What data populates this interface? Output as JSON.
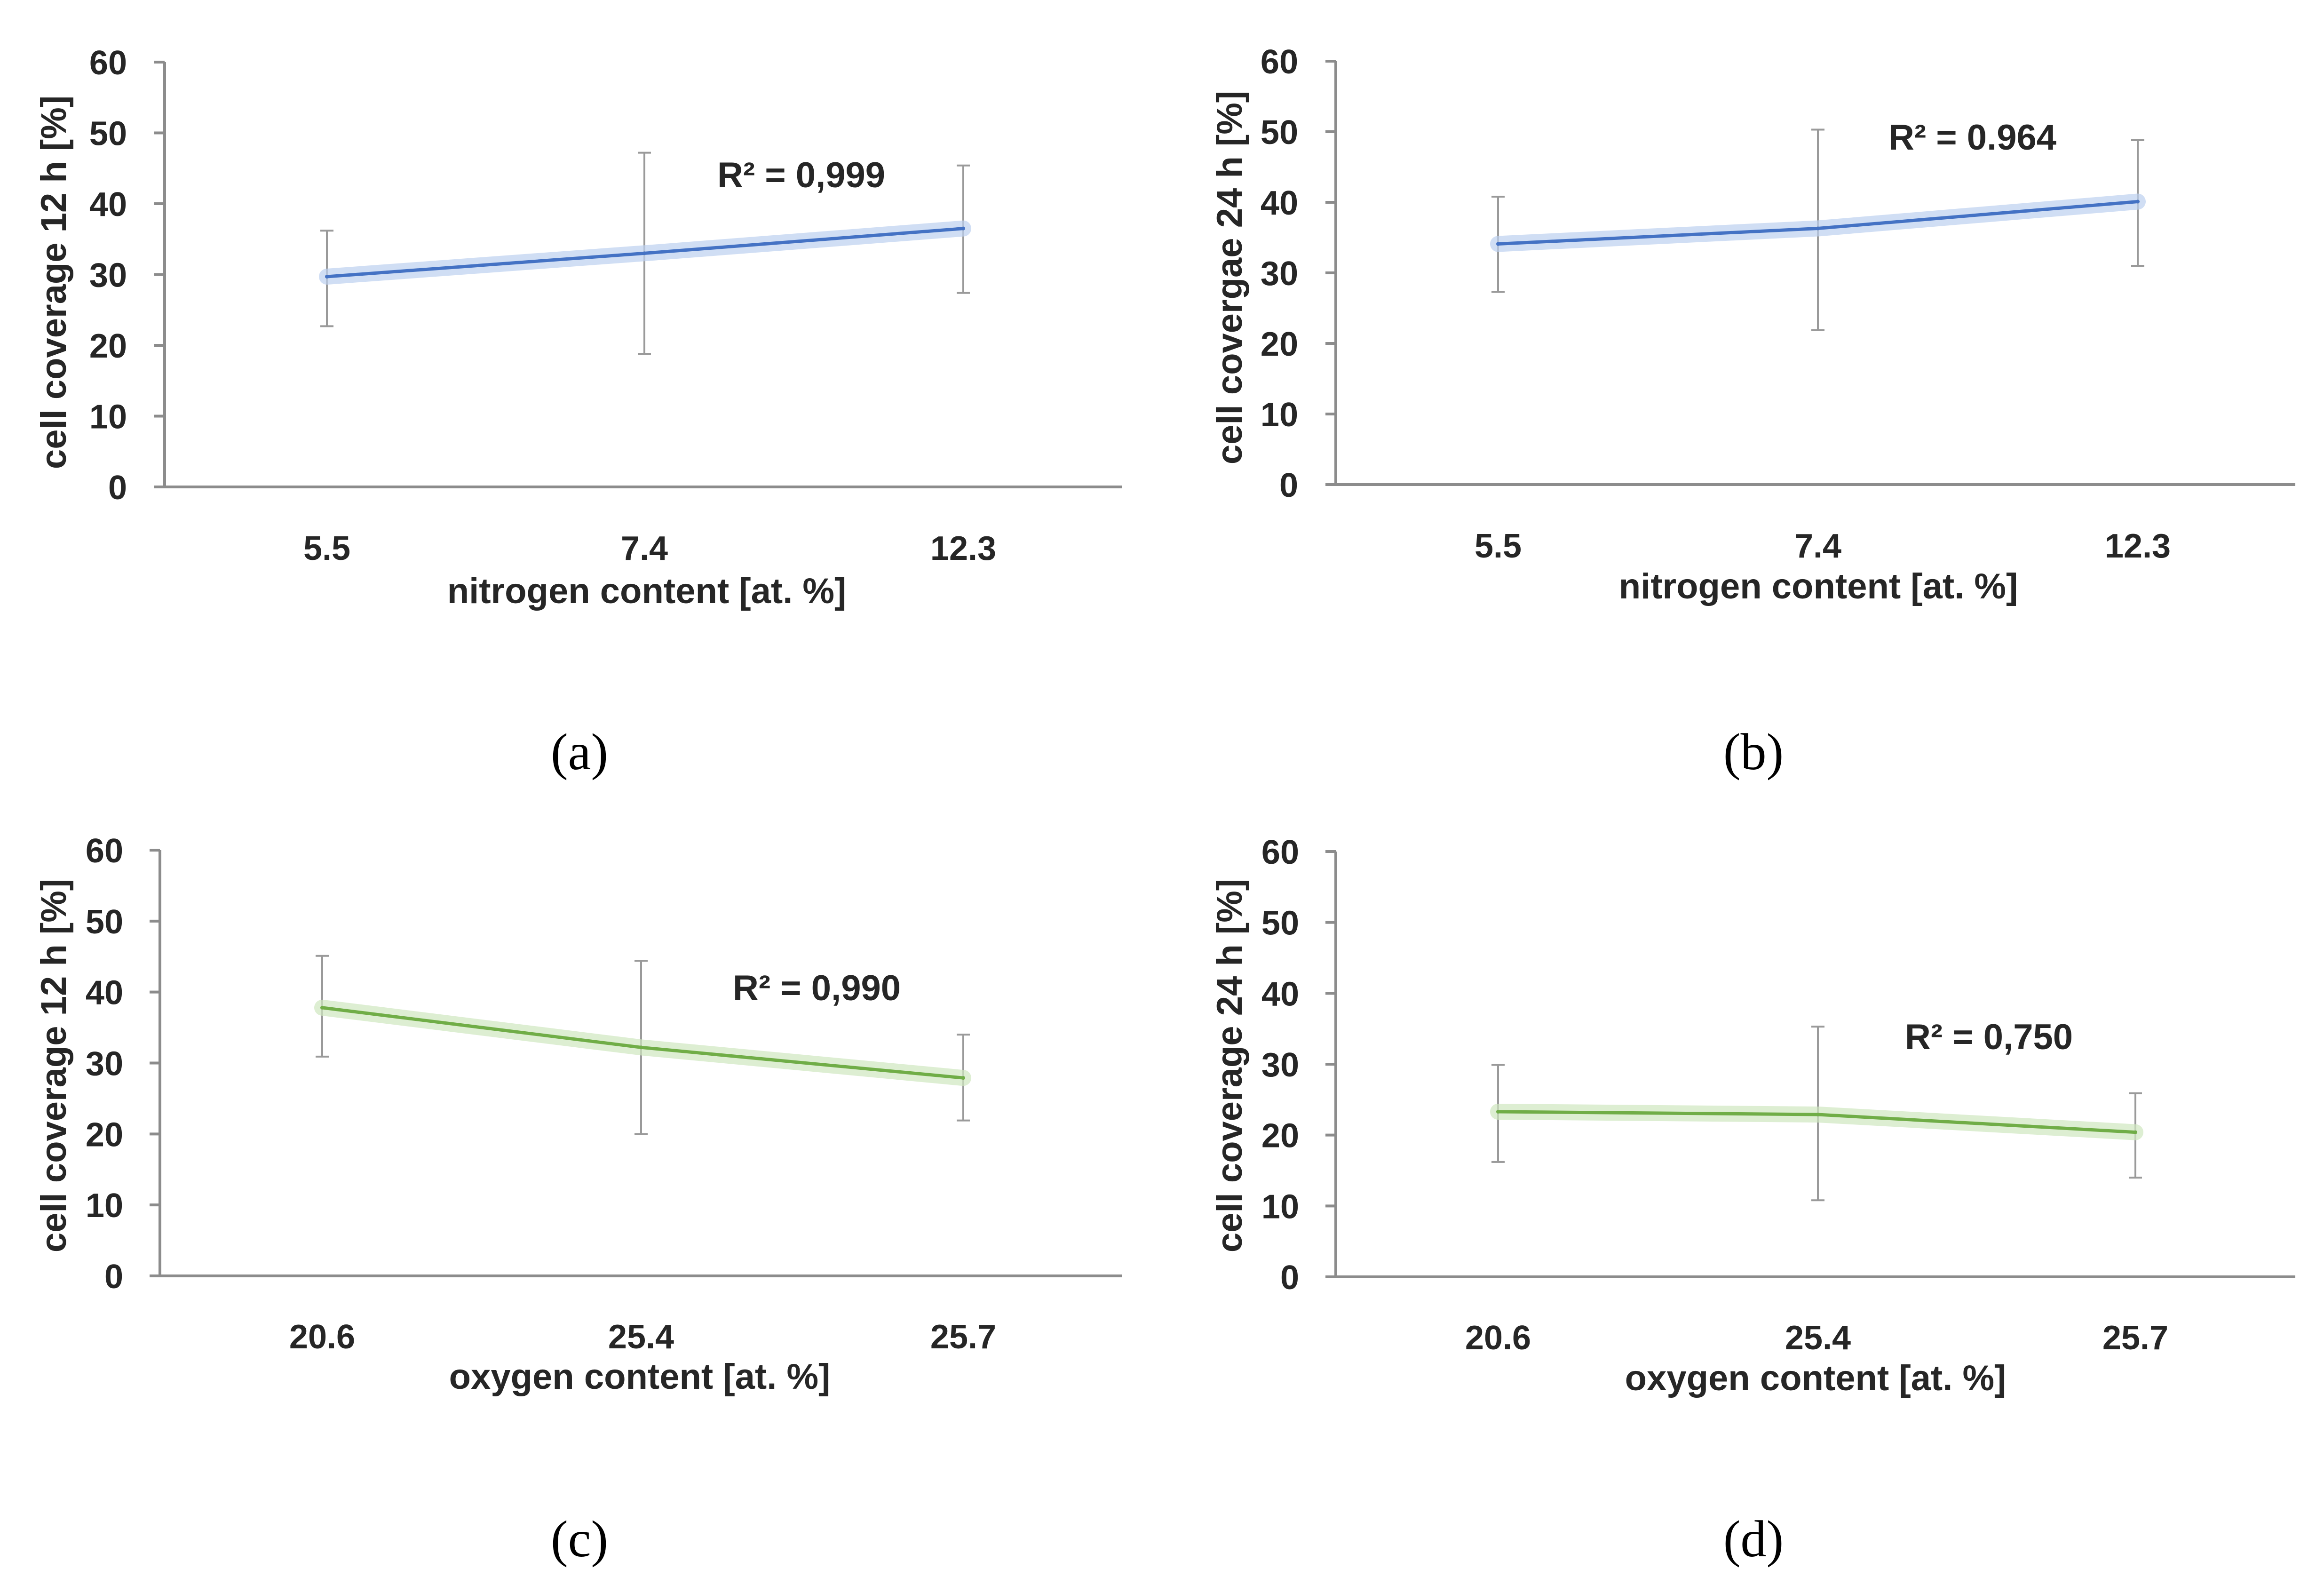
{
  "chart_data": [
    {
      "panel": "(a)",
      "type": "line",
      "title": "",
      "xlabel": "nitrogen content [at. %]",
      "ylabel": "cell coverage 12 h [%]",
      "categories": [
        "5.5",
        "7.4",
        "12.3"
      ],
      "ylim": [
        0,
        60
      ],
      "yticks": [
        0,
        10,
        20,
        30,
        40,
        50,
        60
      ],
      "grid": false,
      "series": [
        {
          "name": "cell coverage 12 h",
          "values": [
            29.7,
            33.0,
            36.5
          ],
          "err_low": [
            22.7,
            18.8,
            27.4
          ],
          "err_high": [
            36.2,
            47.2,
            45.4
          ],
          "color": "#4472c4",
          "glow": "#bcd0f0"
        }
      ],
      "annotation": "R² = 0,999"
    },
    {
      "panel": "(b)",
      "type": "line",
      "title": "",
      "xlabel": "nitrogen content [at. %]",
      "ylabel": "cell covergae 24 h [%]",
      "categories": [
        "5.5",
        "7.4",
        "12.3"
      ],
      "ylim": [
        0,
        60
      ],
      "yticks": [
        0,
        10,
        20,
        30,
        40,
        50,
        60
      ],
      "grid": false,
      "series": [
        {
          "name": "cell coverage 24 h",
          "values": [
            34.1,
            36.3,
            40.1
          ],
          "err_low": [
            27.3,
            21.9,
            31.0
          ],
          "err_high": [
            40.8,
            50.3,
            48.8
          ],
          "color": "#4472c4",
          "glow": "#bcd0f0"
        }
      ],
      "annotation": "R² = 0.964"
    },
    {
      "panel": "(c)",
      "type": "line",
      "title": "",
      "xlabel": "oxygen content [at. %]",
      "ylabel": "cell coverage 12 h [%]",
      "categories": [
        "20.6",
        "25.4",
        "25.7"
      ],
      "ylim": [
        0,
        60
      ],
      "yticks": [
        0,
        10,
        20,
        30,
        40,
        50,
        60
      ],
      "grid": false,
      "series": [
        {
          "name": "cell coverage 12 h",
          "values": [
            37.8,
            32.2,
            27.9
          ],
          "err_low": [
            30.9,
            20.0,
            21.9
          ],
          "err_high": [
            45.1,
            44.4,
            34.0
          ],
          "color": "#70ad47",
          "glow": "#cfe7bf"
        }
      ],
      "annotation": "R² = 0,990"
    },
    {
      "panel": "(d)",
      "type": "line",
      "title": "",
      "xlabel": "oxygen content [at. %]",
      "ylabel": "cell coverage 24 h [%]",
      "categories": [
        "20.6",
        "25.4",
        "25.7"
      ],
      "ylim": [
        0,
        60
      ],
      "yticks": [
        0,
        10,
        20,
        30,
        40,
        50,
        60
      ],
      "grid": false,
      "series": [
        {
          "name": "cell coverage 24 h",
          "values": [
            23.3,
            22.9,
            20.4
          ],
          "err_low": [
            16.2,
            10.8,
            14.0
          ],
          "err_high": [
            29.9,
            35.3,
            25.9
          ],
          "color": "#70ad47",
          "glow": "#cfe7bf"
        }
      ],
      "annotation": "R² = 0,750"
    }
  ]
}
